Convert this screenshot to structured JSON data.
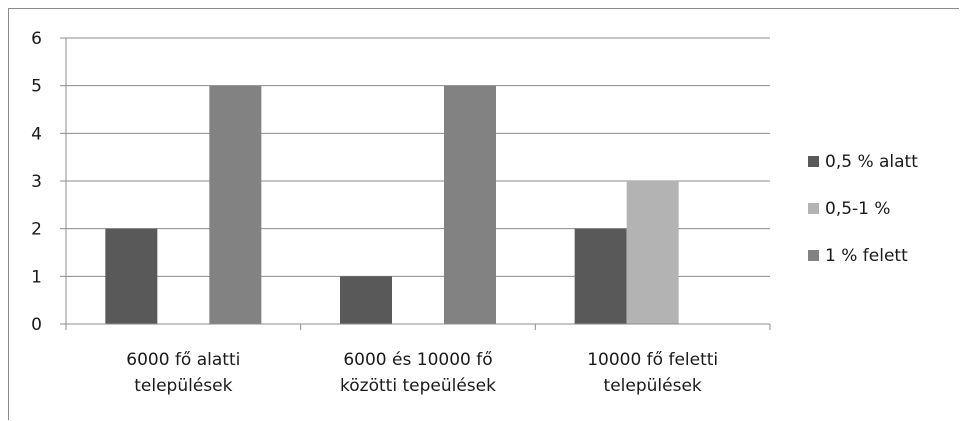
{
  "chart_data": {
    "type": "bar",
    "categories": [
      [
        "6000 fő alatti",
        "települések"
      ],
      [
        "6000 és 10000 fő",
        "közötti tepeülések"
      ],
      [
        "10000 fő feletti",
        "települések"
      ]
    ],
    "series": [
      {
        "name": "0,5 % alatt",
        "color": "#595959",
        "values": [
          2,
          1,
          2
        ]
      },
      {
        "name": "0,5-1 %",
        "color": "#b3b3b3",
        "values": [
          0,
          0,
          3
        ]
      },
      {
        "name": "1 % felett",
        "color": "#828282",
        "values": [
          5,
          5,
          0
        ]
      }
    ],
    "yticks": [
      "0",
      "1",
      "2",
      "3",
      "4",
      "5",
      "6"
    ],
    "ylim": [
      0,
      6
    ],
    "grid": true,
    "legend_position": "right"
  }
}
